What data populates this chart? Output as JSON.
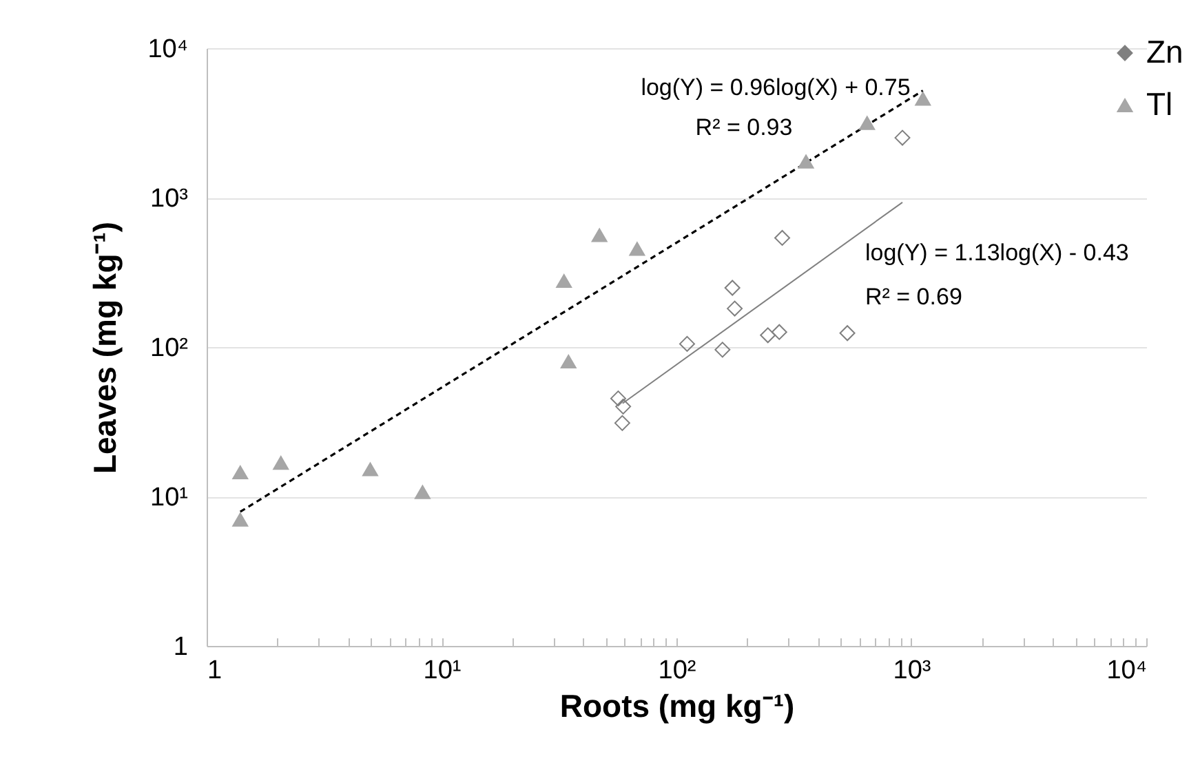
{
  "chart_data": {
    "type": "scatter",
    "xlabel": "Roots (mg kg⁻¹)",
    "ylabel": "Leaves (mg kg⁻¹)",
    "log": "xy",
    "grid": "y",
    "legend": "top right",
    "xlim": [
      1,
      10000
    ],
    "ylim": [
      1,
      10000
    ],
    "xticks": [
      1,
      {
        "value": 2,
        "label": null
      },
      {
        "value": 3,
        "label": null
      },
      {
        "value": 4,
        "label": null
      },
      {
        "value": 5,
        "label": null
      },
      {
        "value": 6,
        "label": null
      },
      {
        "value": 7,
        "label": null
      },
      {
        "value": 8,
        "label": null
      },
      {
        "value": 9,
        "label": null
      },
      {
        "value": 10,
        "label": "10¹"
      },
      {
        "value": 20,
        "label": null
      },
      {
        "value": 30,
        "label": null
      },
      {
        "value": 40,
        "label": null
      },
      {
        "value": 50,
        "label": null
      },
      {
        "value": 60,
        "label": null
      },
      {
        "value": 70,
        "label": null
      },
      {
        "value": 80,
        "label": null
      },
      {
        "value": 90,
        "label": null
      },
      {
        "value": 100,
        "label": "10²"
      },
      {
        "value": 200,
        "label": null
      },
      {
        "value": 300,
        "label": null
      },
      {
        "value": 400,
        "label": null
      },
      {
        "value": 500,
        "label": null
      },
      {
        "value": 600,
        "label": null
      },
      {
        "value": 700,
        "label": null
      },
      {
        "value": 800,
        "label": null
      },
      {
        "value": 900,
        "label": null
      },
      {
        "value": 1000,
        "label": "10³"
      },
      {
        "value": 2000,
        "label": null
      },
      {
        "value": 3000,
        "label": null
      },
      {
        "value": 4000,
        "label": null
      },
      {
        "value": 5000,
        "label": null
      },
      {
        "value": 6000,
        "label": null
      },
      {
        "value": 7000,
        "label": null
      },
      {
        "value": 8000,
        "label": null
      },
      {
        "value": 9000,
        "label": null
      },
      {
        "value": 10000,
        "label": "10⁴"
      }
    ],
    "yticks": [
      1,
      {
        "value": 10,
        "label": "10¹"
      },
      {
        "value": 100,
        "label": "10²"
      },
      {
        "value": 1000,
        "label": "10³"
      },
      {
        "value": 10000,
        "label": "10⁴"
      }
    ],
    "series": [
      {
        "name": "Zn",
        "marker": "diamond",
        "color": "#7f7f7f",
        "x": [
          916,
          282,
          173,
          177,
          111,
          157,
          245,
          274,
          534,
          56.5,
          59.3,
          58.8
        ],
        "values": [
          2515,
          538,
          249,
          181,
          105,
          96,
          120,
          126,
          124,
          45.3,
          40,
          31
        ]
      },
      {
        "name": "Tl",
        "marker": "triangle",
        "color": "#a6a6a6",
        "x": [
          1.39,
          1.39,
          2.07,
          4.97,
          8.3,
          33.2,
          34.7,
          47,
          68,
          356,
          648,
          1120
        ],
        "values": [
          14.5,
          7.0,
          16.8,
          15.2,
          10.7,
          277,
          80,
          561,
          454,
          1742,
          3160,
          4590
        ]
      },
      {
        "type": "line",
        "line_style": "dashed",
        "color": "#000000",
        "x": [
          1.39,
          1120
        ],
        "values": [
          7.9,
          5200
        ]
      },
      {
        "type": "line",
        "line_style": "solid",
        "color": "#808080",
        "x": [
          59,
          916
        ],
        "values": [
          42,
          930
        ]
      }
    ],
    "annotations": [
      "log(Y) = 0.96log(X) + 0.75",
      "R² = 0.93",
      "log(Y) = 1.13log(X) - 0.43",
      "R² = 0.69"
    ]
  }
}
